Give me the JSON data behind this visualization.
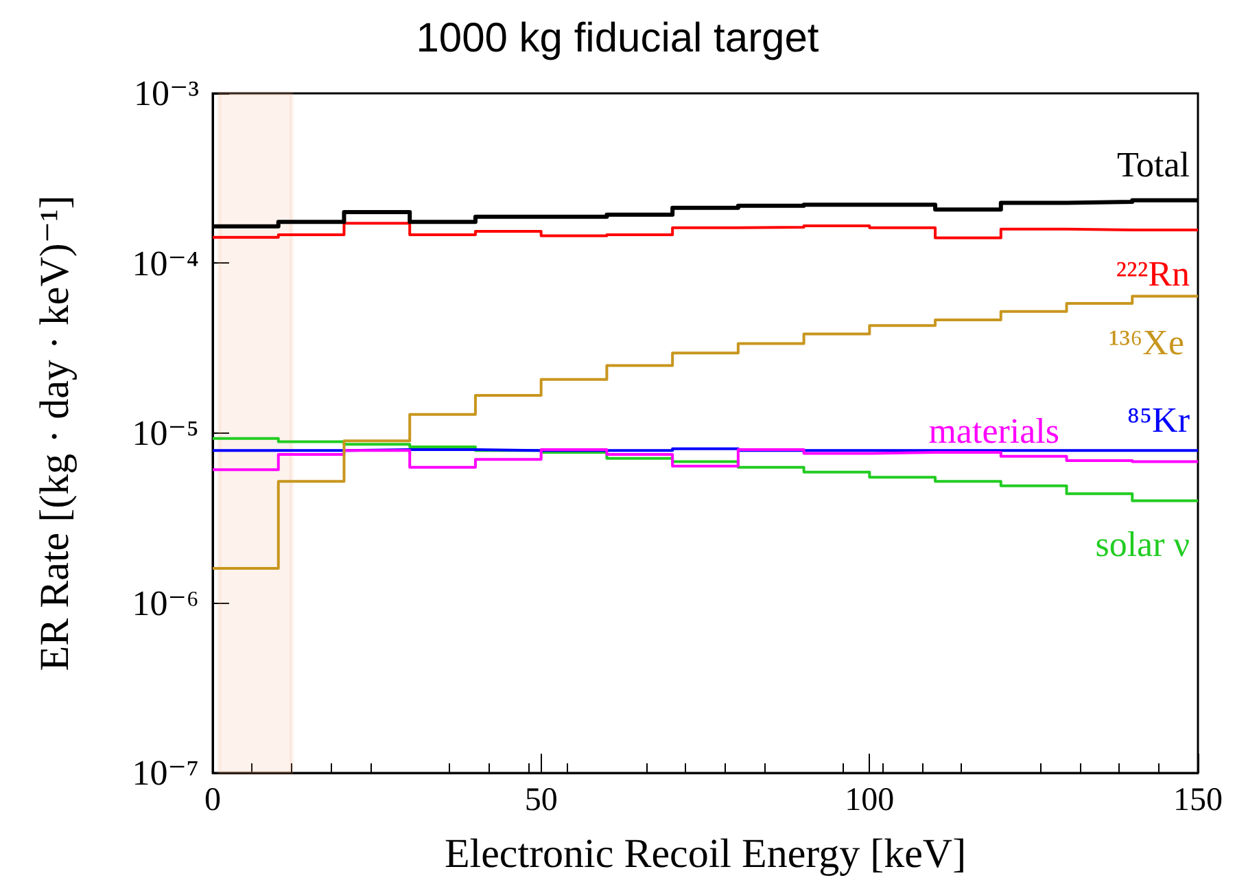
{
  "chart_data": {
    "type": "step",
    "title": "1000 kg fiducial target",
    "xlabel": "Electronic Recoil Energy [keV]",
    "ylabel": "ER Rate [(kg · day · keV)⁻¹]",
    "x": [
      0,
      10,
      20,
      30,
      40,
      50,
      60,
      70,
      80,
      90,
      100,
      110,
      120,
      130,
      140,
      150
    ],
    "series": [
      {
        "name": "Total",
        "color": "#000000",
        "values": [
          0.000165,
          0.000175,
          0.0002,
          0.000175,
          0.000188,
          0.000188,
          0.000193,
          0.000212,
          0.000218,
          0.000221,
          0.000221,
          0.000207,
          0.000227,
          0.00023,
          0.000235,
          0.000235
        ]
      },
      {
        "name": "²²²Rn",
        "color": "#ff0000",
        "values": [
          0.000142,
          0.000147,
          0.000172,
          0.000147,
          0.000154,
          0.000145,
          0.000147,
          0.000162,
          0.000163,
          0.000166,
          0.000162,
          0.000141,
          0.000159,
          0.000157,
          0.000157,
          0.000157
        ]
      },
      {
        "name": "¹³⁶Xe",
        "color": "#c8961e",
        "values": [
          1.6e-06,
          5.2e-06,
          9e-06,
          1.29e-05,
          1.67e-05,
          2.07e-05,
          2.5e-05,
          2.96e-05,
          3.37e-05,
          3.84e-05,
          4.3e-05,
          4.64e-05,
          5.2e-05,
          5.8e-05,
          6.4e-05,
          6.4e-05
        ]
      },
      {
        "name": "materials",
        "color": "#ff00ff",
        "values": [
          6.1e-06,
          7.5e-06,
          7.9e-06,
          6.3e-06,
          7e-06,
          8e-06,
          7.5e-06,
          6.4e-06,
          8e-06,
          7.6e-06,
          7.7e-06,
          7.7e-06,
          7.3e-06,
          6.9e-06,
          6.8e-06,
          6.8e-06
        ]
      },
      {
        "name": "⁸⁵Kr",
        "color": "#0000ff",
        "values": [
          7.9e-06,
          7.9e-06,
          8e-06,
          8e-06,
          7.9e-06,
          7.9e-06,
          7.9e-06,
          8.1e-06,
          7.9e-06,
          7.9e-06,
          7.9e-06,
          7.9e-06,
          7.9e-06,
          7.9e-06,
          7.9e-06,
          7.9e-06
        ]
      },
      {
        "name": "solar ν",
        "color": "#22cc22",
        "values": [
          9.3e-06,
          8.9e-06,
          8.6e-06,
          8.3e-06,
          7.9e-06,
          7.7e-06,
          7.1e-06,
          6.8e-06,
          6.3e-06,
          5.9e-06,
          5.5e-06,
          5.2e-06,
          4.9e-06,
          4.4e-06,
          4e-06,
          4e-06
        ]
      }
    ],
    "log": "y",
    "xlim": [
      0,
      150
    ],
    "xticks": [
      0,
      50,
      100,
      150
    ],
    "ylim": [
      1e-07,
      0.001
    ],
    "yticks": [
      {
        "value": 1e-07,
        "label": "10⁻⁷"
      },
      {
        "value": 1e-06,
        "label": "10⁻⁶"
      },
      {
        "value": 1e-05,
        "label": "10⁻⁵"
      },
      {
        "value": 0.0001,
        "label": "10⁻⁴"
      },
      {
        "value": 0.001,
        "label": "10⁻³"
      }
    ],
    "bands": [
      {
        "axis": "x",
        "from": 1,
        "to": 12,
        "color": "#f4a582"
      }
    ],
    "grid": false,
    "legend": false
  }
}
